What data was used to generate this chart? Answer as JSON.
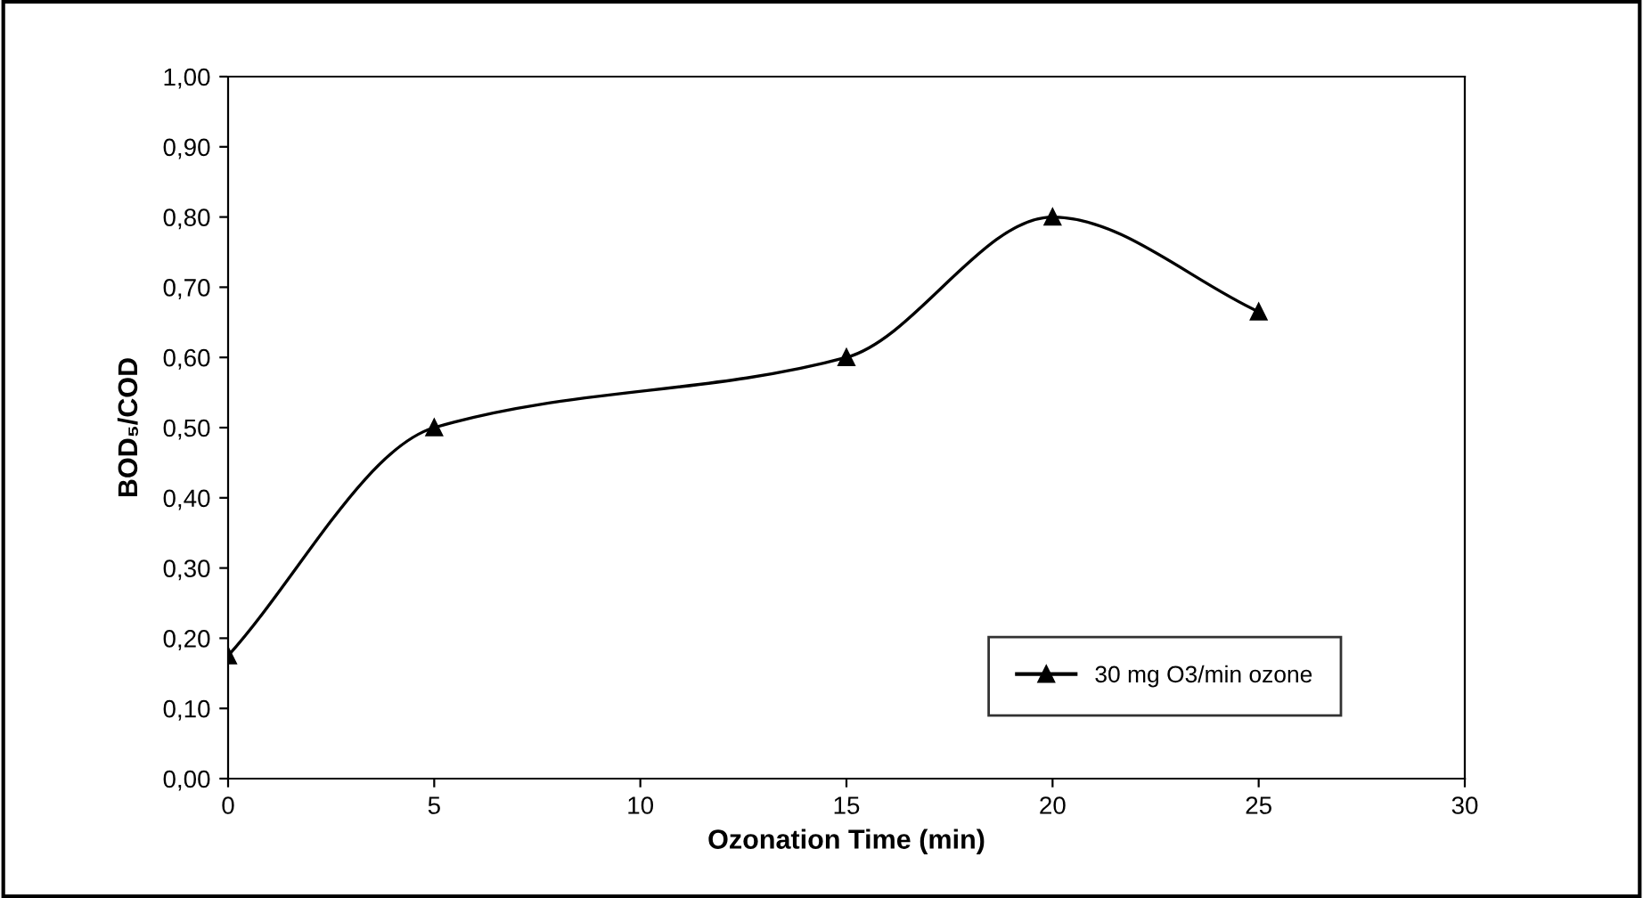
{
  "chart_data": {
    "type": "line",
    "xlabel": "Ozonation Time (min)",
    "ylabel": "BOD₅/COD",
    "x": [
      0,
      5,
      15,
      20,
      25
    ],
    "series": [
      {
        "name": "30 mg O3/min ozone",
        "color": "#000000",
        "values": [
          0.175,
          0.5,
          0.6,
          0.8,
          0.665
        ]
      }
    ],
    "xlim": [
      0,
      30
    ],
    "xticks": [
      0,
      5,
      10,
      15,
      20,
      25,
      30
    ],
    "ylim": [
      0,
      1.0
    ],
    "yticks": [
      {
        "value": 0,
        "label": "0,00"
      },
      {
        "value": 0.1,
        "label": "0,10"
      },
      {
        "value": 0.2,
        "label": "0,20"
      },
      {
        "value": 0.3,
        "label": "0,30"
      },
      {
        "value": 0.4,
        "label": "0,40"
      },
      {
        "value": 0.5,
        "label": "0,50"
      },
      {
        "value": 0.6,
        "label": "0,60"
      },
      {
        "value": 0.7,
        "label": "0,70"
      },
      {
        "value": 0.8,
        "label": "0,80"
      },
      {
        "value": 0.9,
        "label": "0,90"
      },
      {
        "value": 1.0,
        "label": "1,00"
      }
    ],
    "grid": false,
    "legend": "bottom right",
    "marker": "triangle",
    "line_style": "solid"
  }
}
